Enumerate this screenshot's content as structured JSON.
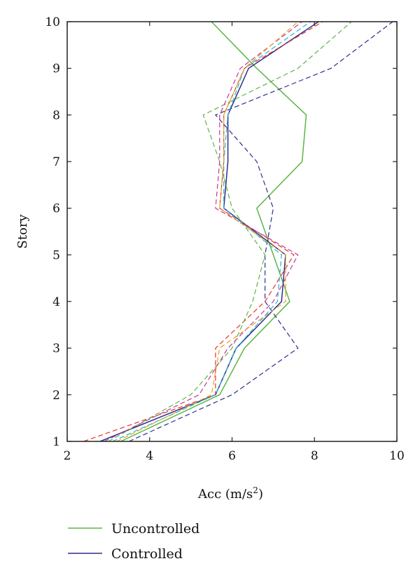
{
  "chart_data": {
    "type": "line",
    "xlabel": "Acc (m/s",
    "xlabel_sup": "2",
    "xlabel_close": ")",
    "ylabel": "Story",
    "xlim": [
      2,
      10
    ],
    "ylim": [
      1,
      10
    ],
    "x_ticks": [
      2,
      4,
      6,
      8,
      10
    ],
    "y_ticks": [
      1,
      2,
      3,
      4,
      5,
      6,
      7,
      8,
      9,
      10
    ],
    "grid": false,
    "legend_position": "bottom",
    "y": [
      1,
      2,
      3,
      4,
      5,
      6,
      7,
      8,
      9,
      10
    ],
    "series": [
      {
        "name": "Uncontrolled",
        "color": "#5cb548",
        "dash": "solid",
        "width": 1.5,
        "x": [
          3.3,
          5.7,
          6.3,
          7.4,
          7.0,
          6.6,
          7.7,
          7.8,
          6.6,
          5.5
        ]
      },
      {
        "name": "Controlled",
        "color": "#2e2f8f",
        "dash": "solid",
        "width": 1.5,
        "x": [
          2.8,
          5.6,
          6.1,
          7.2,
          7.3,
          5.8,
          5.9,
          5.9,
          6.4,
          8.1
        ]
      },
      {
        "color": "#2e2f8f",
        "dash": "dashed",
        "width": 1.2,
        "x": [
          3.5,
          6.0,
          7.6,
          6.8,
          6.8,
          7.0,
          6.6,
          5.6,
          8.4,
          9.9
        ]
      },
      {
        "color": "#e8332a",
        "dash": "dashed",
        "width": 1.2,
        "x": [
          2.4,
          5.6,
          5.6,
          6.8,
          7.5,
          5.7,
          5.8,
          5.8,
          6.3,
          8.2
        ]
      },
      {
        "color": "#5cb548",
        "dash": "dashed",
        "width": 1.2,
        "x": [
          3.0,
          5.0,
          6.0,
          6.5,
          6.8,
          6.0,
          5.7,
          5.3,
          7.6,
          8.9
        ]
      },
      {
        "color": "#c0399b",
        "dash": "dashed",
        "width": 1.2,
        "x": [
          2.9,
          5.2,
          5.9,
          7.0,
          7.6,
          5.6,
          5.7,
          5.7,
          6.2,
          7.7
        ]
      },
      {
        "color": "#22b6c9",
        "dash": "dashed",
        "width": 1.2,
        "x": [
          3.1,
          5.6,
          6.1,
          7.1,
          7.2,
          5.8,
          5.8,
          5.9,
          6.3,
          7.9
        ]
      },
      {
        "color": "#e8a317",
        "dash": "dashed",
        "width": 1.2,
        "x": [
          3.2,
          5.5,
          5.7,
          7.3,
          7.3,
          5.7,
          5.8,
          5.8,
          6.3,
          7.6
        ]
      }
    ]
  }
}
